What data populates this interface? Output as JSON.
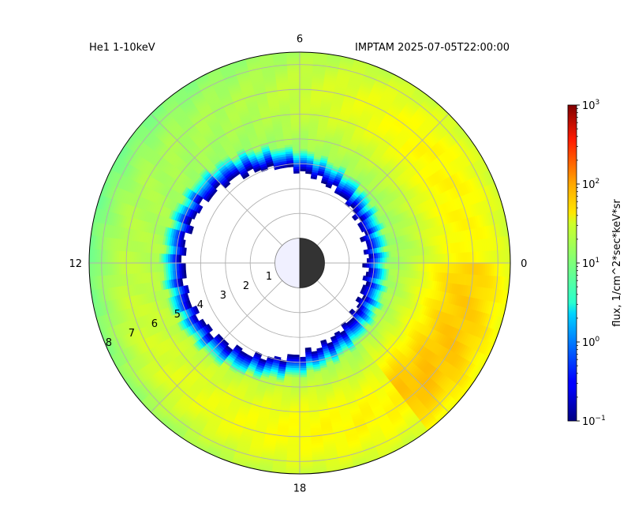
{
  "chart_data": {
    "type": "polar-heatmap",
    "title_left": "He1 1-10keV",
    "title_right": "IMPTAM 2025-07-05T22:00:00",
    "angular_tick_labels": [
      {
        "mlt": 0,
        "label": "0"
      },
      {
        "mlt": 6,
        "label": "6"
      },
      {
        "mlt": 12,
        "label": "12"
      },
      {
        "mlt": 18,
        "label": "18"
      }
    ],
    "radial_tick_labels": [
      "1",
      "2",
      "3",
      "4",
      "5",
      "6",
      "7",
      "8"
    ],
    "radial_range": [
      0,
      8.5
    ],
    "earth": {
      "radius": 1,
      "day_color": "#f0f0ff",
      "night_color": "#333333"
    },
    "grid": true,
    "colorbar": {
      "label": "flux, 1/cm^2*sec*keV*sr",
      "scale": "log",
      "min": 0.1,
      "max": 1000,
      "colormap": "jet",
      "ticks": [
        {
          "value": 0.1,
          "base": "10",
          "exp": "−1"
        },
        {
          "value": 1,
          "base": "10",
          "exp": "0"
        },
        {
          "value": 10,
          "base": "10",
          "exp": "1"
        },
        {
          "value": 100,
          "base": "10",
          "exp": "2"
        },
        {
          "value": 1000,
          "base": "10",
          "exp": "3"
        }
      ]
    },
    "flux_model": {
      "inner_edge_noon": 4.7,
      "inner_edge_midnight": 2.7,
      "outer_radius": 8.5,
      "base_flux": 12,
      "dusk_enhancement": 22,
      "outer_noon_flux": 7,
      "edge_rise_width": 0.9
    }
  }
}
